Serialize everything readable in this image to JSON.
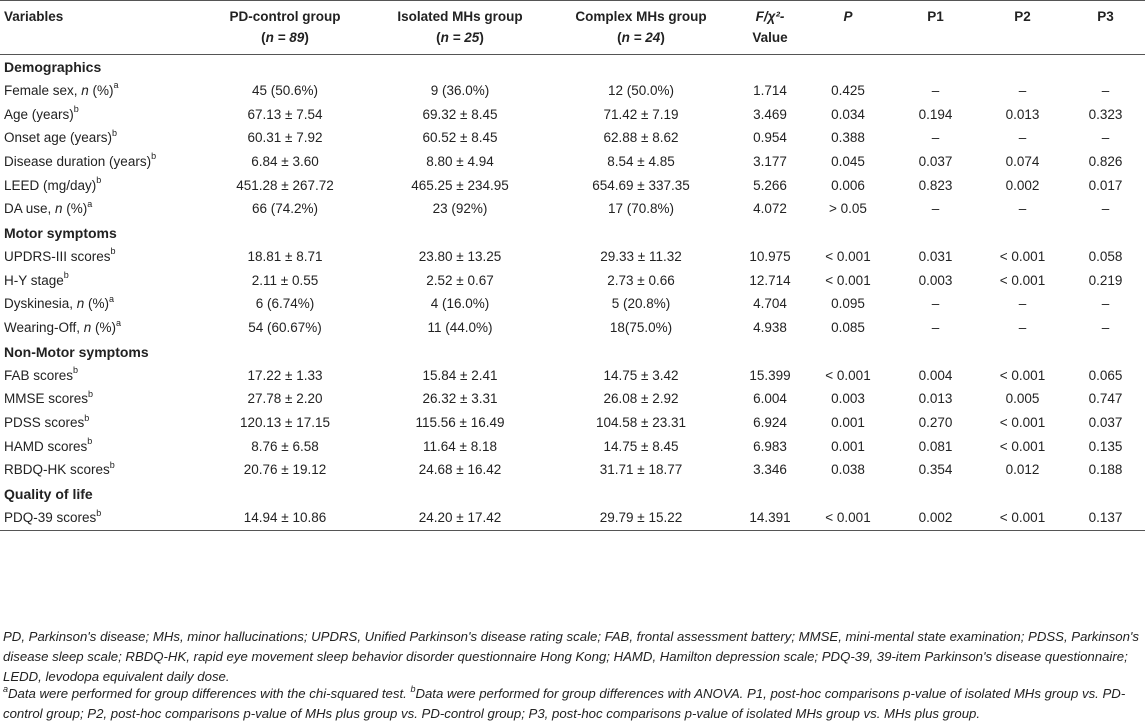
{
  "header": {
    "variables": "Variables",
    "pd_control": "PD-control group",
    "pd_control_n": "n = 89",
    "isolated": "Isolated MHs group",
    "isolated_n": "n = 25",
    "complex": "Complex MHs group",
    "complex_n": "n = 24",
    "fvalue_line1": "F/χ²-",
    "fvalue_line2": "Value",
    "p": "P",
    "p1": "P1",
    "p2": "P2",
    "p3": "P3"
  },
  "sections": [
    {
      "title": "Demographics",
      "rows": [
        {
          "label": "Female sex, n (%)",
          "sup": "a",
          "pd": "45 (50.6%)",
          "iso": "9 (36.0%)",
          "cpx": "12 (50.0%)",
          "f": "1.714",
          "p": "0.425",
          "p1": "–",
          "p2": "–",
          "p3": "–"
        },
        {
          "label": "Age (years)",
          "sup": "b",
          "pd": "67.13 ± 7.54",
          "iso": "69.32 ± 8.45",
          "cpx": "71.42 ± 7.19",
          "f": "3.469",
          "p": "0.034",
          "p1": "0.194",
          "p2": "0.013",
          "p3": "0.323"
        },
        {
          "label": "Onset age (years)",
          "sup": "b",
          "pd": "60.31 ± 7.92",
          "iso": "60.52 ± 8.45",
          "cpx": "62.88 ± 8.62",
          "f": "0.954",
          "p": "0.388",
          "p1": "–",
          "p2": "–",
          "p3": "–"
        },
        {
          "label": "Disease duration (years)",
          "sup": "b",
          "pd": "6.84 ± 3.60",
          "iso": "8.80 ± 4.94",
          "cpx": "8.54 ± 4.85",
          "f": "3.177",
          "p": "0.045",
          "p1": "0.037",
          "p2": "0.074",
          "p3": "0.826"
        },
        {
          "label": "LEED (mg/day)",
          "sup": "b",
          "pd": "451.28 ± 267.72",
          "iso": "465.25 ± 234.95",
          "cpx": "654.69 ± 337.35",
          "f": "5.266",
          "p": "0.006",
          "p1": "0.823",
          "p2": "0.002",
          "p3": "0.017"
        },
        {
          "label": "DA use, n (%)",
          "sup": "a",
          "pd": "66 (74.2%)",
          "iso": "23 (92%)",
          "cpx": "17 (70.8%)",
          "f": "4.072",
          "p": "> 0.05",
          "p1": "–",
          "p2": "–",
          "p3": "–"
        }
      ]
    },
    {
      "title": "Motor symptoms",
      "rows": [
        {
          "label": "UPDRS-III scores",
          "sup": "b",
          "pd": "18.81 ± 8.71",
          "iso": "23.80 ± 13.25",
          "cpx": "29.33 ± 11.32",
          "f": "10.975",
          "p": "< 0.001",
          "p1": "0.031",
          "p2": "< 0.001",
          "p3": "0.058"
        },
        {
          "label": "H-Y stage",
          "sup": "b",
          "pd": "2.11 ± 0.55",
          "iso": "2.52 ± 0.67",
          "cpx": "2.73 ± 0.66",
          "f": "12.714",
          "p": "< 0.001",
          "p1": "0.003",
          "p2": "< 0.001",
          "p3": "0.219"
        },
        {
          "label": "Dyskinesia, n (%)",
          "sup": "a",
          "pd": "6 (6.74%)",
          "iso": "4 (16.0%)",
          "cpx": "5 (20.8%)",
          "f": "4.704",
          "p": "0.095",
          "p1": "–",
          "p2": "–",
          "p3": "–"
        },
        {
          "label": "Wearing-Off, n (%)",
          "sup": "a",
          "pd": "54 (60.67%)",
          "iso": "11 (44.0%)",
          "cpx": "18(75.0%)",
          "f": "4.938",
          "p": "0.085",
          "p1": "–",
          "p2": "–",
          "p3": "–"
        }
      ]
    },
    {
      "title": "Non-Motor symptoms",
      "rows": [
        {
          "label": "FAB scores",
          "sup": "b",
          "pd": "17.22 ± 1.33",
          "iso": "15.84 ± 2.41",
          "cpx": "14.75 ± 3.42",
          "f": "15.399",
          "p": "< 0.001",
          "p1": "0.004",
          "p2": "< 0.001",
          "p3": "0.065"
        },
        {
          "label": "MMSE scores",
          "sup": "b",
          "pd": "27.78 ± 2.20",
          "iso": "26.32 ± 3.31",
          "cpx": "26.08 ± 2.92",
          "f": "6.004",
          "p": "0.003",
          "p1": "0.013",
          "p2": "0.005",
          "p3": "0.747"
        },
        {
          "label": "PDSS scores",
          "sup": "b",
          "pd": "120.13 ± 17.15",
          "iso": "115.56 ± 16.49",
          "cpx": "104.58 ± 23.31",
          "f": "6.924",
          "p": "0.001",
          "p1": "0.270",
          "p2": "< 0.001",
          "p3": "0.037"
        },
        {
          "label": "HAMD scores",
          "sup": "b",
          "pd": "8.76 ± 6.58",
          "iso": "11.64 ± 8.18",
          "cpx": "14.75 ± 8.45",
          "f": "6.983",
          "p": "0.001",
          "p1": "0.081",
          "p2": "< 0.001",
          "p3": "0.135"
        },
        {
          "label": "RBDQ-HK scores",
          "sup": "b",
          "pd": "20.76 ± 19.12",
          "iso": "24.68 ± 16.42",
          "cpx": "31.71 ± 18.77",
          "f": "3.346",
          "p": "0.038",
          "p1": "0.354",
          "p2": "0.012",
          "p3": "0.188"
        }
      ]
    },
    {
      "title": "Quality of life",
      "rows": [
        {
          "label": "PDQ-39 scores",
          "sup": "b",
          "pd": "14.94 ± 10.86",
          "iso": "24.20 ± 17.42",
          "cpx": "29.79 ± 15.22",
          "f": "14.391",
          "p": "< 0.001",
          "p1": "0.002",
          "p2": "< 0.001",
          "p3": "0.137"
        }
      ]
    }
  ],
  "footnotes": {
    "abbrev": "PD, Parkinson's disease; MHs, minor hallucinations; UPDRS, Unified Parkinson's disease rating scale; FAB, frontal assessment battery; MMSE, mini-mental state examination; PDSS, Parkinson's disease sleep scale; RBDQ-HK, rapid eye movement sleep behavior disorder questionnaire Hong Kong; HAMD, Hamilton depression scale; PDQ-39, 39-item Parkinson's disease questionnaire; LEDD, levodopa equivalent daily dose.",
    "a_mark": "a",
    "a_text": "Data were performed for group differences with the chi-squared test. ",
    "b_mark": "b",
    "b_text": "Data were performed for group differences with ANOVA. P1, post-hoc comparisons p-value of isolated MHs group vs. PD-control group; P2, post-hoc comparisons p-value of MHs plus group vs. PD-control group; P3, post-hoc comparisons p-value of isolated MHs group vs. MHs plus group."
  }
}
